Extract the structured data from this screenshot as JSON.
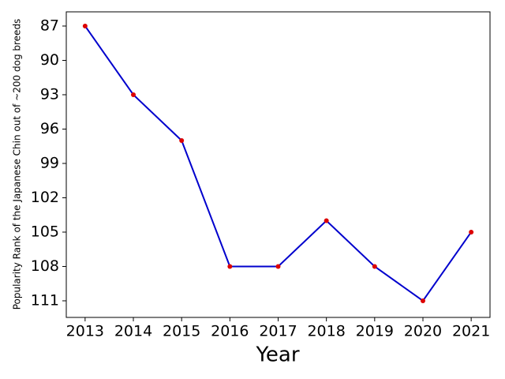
{
  "chart_data": {
    "type": "line",
    "x_label": "Year",
    "y_label": "Popularity Rank of the Japanese Chin out of ~200 dog breeds",
    "x": [
      2013,
      2014,
      2015,
      2016,
      2017,
      2018,
      2019,
      2020,
      2021
    ],
    "series": [
      {
        "color": "#0000cd",
        "marker_color": "#dd0000",
        "values": [
          87,
          93,
          97,
          108,
          108,
          104,
          108,
          111,
          105
        ]
      }
    ],
    "xlim": [
      2012.61,
      2021.39
    ],
    "xticks": [
      2013,
      2014,
      2015,
      2016,
      2017,
      2018,
      2019,
      2020,
      2021
    ],
    "ylim": [
      112.45,
      85.76
    ],
    "yticks": [
      87,
      90,
      93,
      96,
      99,
      102,
      105,
      108,
      111
    ],
    "grid": false
  }
}
